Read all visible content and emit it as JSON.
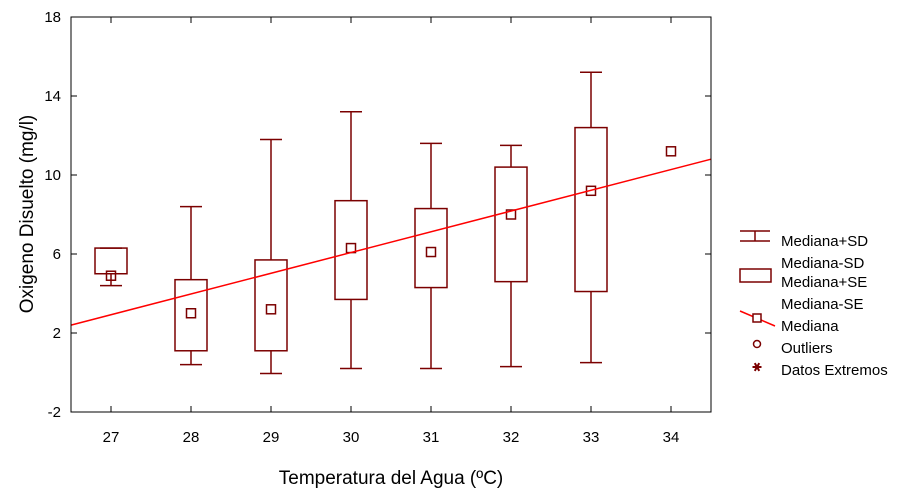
{
  "colors": {
    "box": "#7b0000",
    "fit_line": "#ff0000",
    "axis": "#000000"
  },
  "chart_data": {
    "type": "boxplot",
    "title": "",
    "xlabel": "Temperatura del Agua (ºC)",
    "ylabel": "Oxigeno Disuelto (mg/l)",
    "xlim": [
      26.5,
      34.5
    ],
    "ylim": [
      -2,
      18
    ],
    "xticks": [
      "27",
      "28",
      "29",
      "30",
      "31",
      "32",
      "33",
      "34"
    ],
    "yticks": [
      "-2",
      "2",
      "6",
      "10",
      "14",
      "18"
    ],
    "grid": false,
    "legend_position": "right",
    "boxes": [
      {
        "x": 27,
        "median": 4.9,
        "se_low": 5.0,
        "se_high": 6.3,
        "sd_low": 4.4,
        "sd_high": 6.3
      },
      {
        "x": 28,
        "median": 3.0,
        "se_low": 1.1,
        "se_high": 4.7,
        "sd_low": 0.4,
        "sd_high": 8.4
      },
      {
        "x": 29,
        "median": 3.2,
        "se_low": 1.1,
        "se_high": 5.7,
        "sd_low": -0.05,
        "sd_high": 11.8
      },
      {
        "x": 30,
        "median": 6.3,
        "se_low": 3.7,
        "se_high": 8.7,
        "sd_low": 0.2,
        "sd_high": 13.2
      },
      {
        "x": 31,
        "median": 6.1,
        "se_low": 4.3,
        "se_high": 8.3,
        "sd_low": 0.2,
        "sd_high": 11.6
      },
      {
        "x": 32,
        "median": 8.0,
        "se_low": 4.6,
        "se_high": 10.4,
        "sd_low": 0.3,
        "sd_high": 11.5
      },
      {
        "x": 33,
        "median": 9.2,
        "se_low": 4.1,
        "se_high": 12.4,
        "sd_low": 0.5,
        "sd_high": 15.2
      },
      {
        "x": 34,
        "median": 11.2
      }
    ],
    "regression_line": {
      "x": [
        26.5,
        34.5
      ],
      "y": [
        2.4,
        10.8
      ]
    },
    "legend": [
      {
        "symbol": "whisker",
        "label": "Mediana+SD"
      },
      {
        "symbol": "none",
        "label": "Mediana-SD"
      },
      {
        "symbol": "box",
        "label": "Mediana+SE"
      },
      {
        "symbol": "none",
        "label": "Mediana-SE"
      },
      {
        "symbol": "line-square",
        "label": "Mediana"
      },
      {
        "symbol": "circle",
        "label": "Outliers"
      },
      {
        "symbol": "star",
        "label": "Datos Extremos"
      }
    ]
  }
}
